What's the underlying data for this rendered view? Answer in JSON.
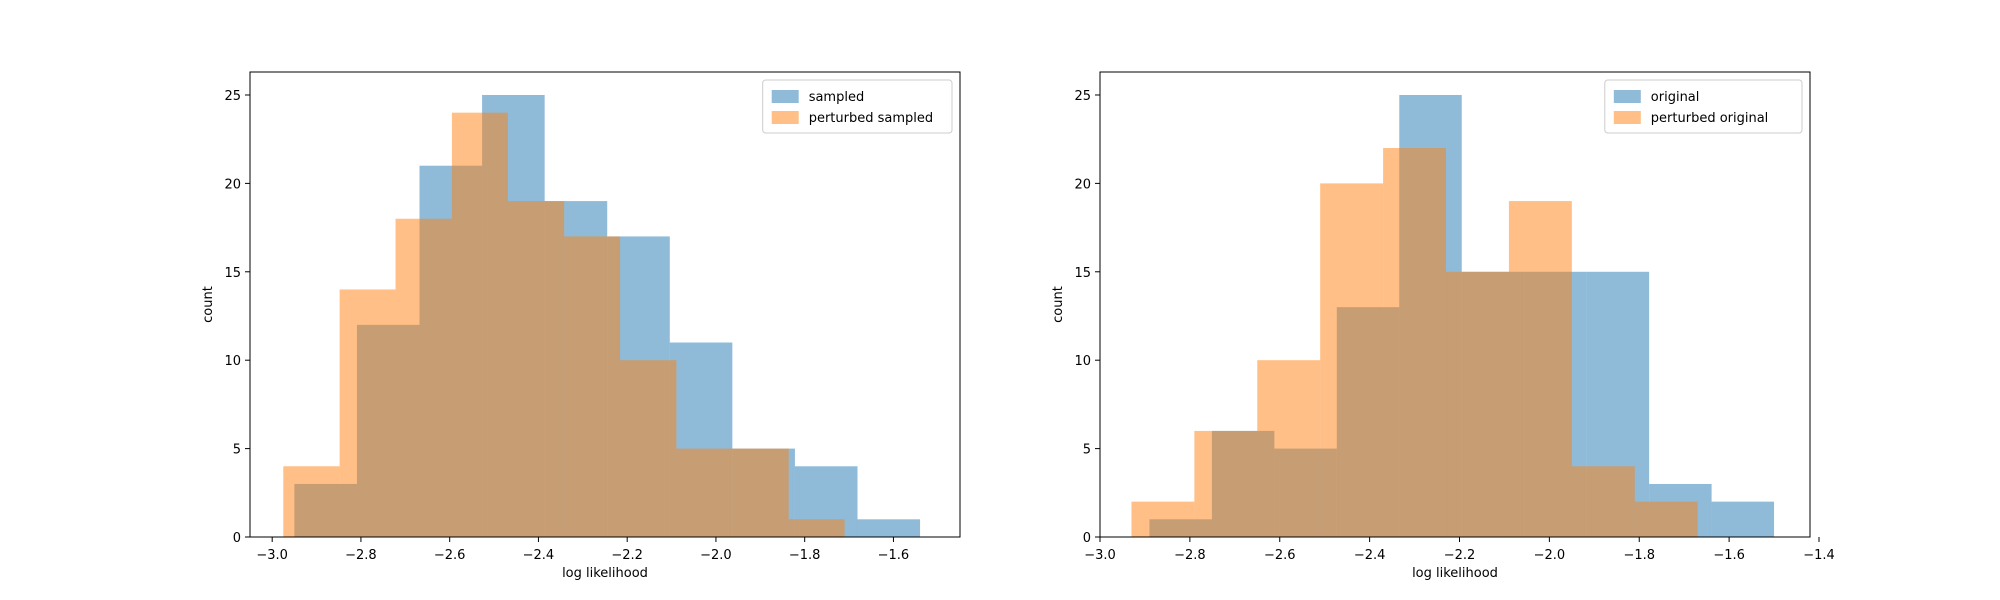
{
  "colors": {
    "series0": "#1f77b4",
    "series1": "#ff7f0e",
    "bar_alpha": 0.5
  },
  "chart_data": [
    {
      "type": "histogram",
      "xlabel": "log likelihood",
      "ylabel": "count",
      "xlim": [
        -3.05,
        -1.45
      ],
      "ylim": [
        0,
        26.3
      ],
      "xticks": [
        -3.0,
        -2.8,
        -2.6,
        -2.4,
        -2.2,
        -2.0,
        -1.8,
        -1.6
      ],
      "xtick_labels": [
        "−3.0",
        "−2.8",
        "−2.6",
        "−2.4",
        "−2.2",
        "−2.0",
        "−1.8",
        "−1.6"
      ],
      "yticks": [
        0,
        5,
        10,
        15,
        20,
        25
      ],
      "ytick_labels": [
        "0",
        "5",
        "10",
        "15",
        "20",
        "25"
      ],
      "grid": false,
      "legend_position": "top-right",
      "series": [
        {
          "name": "sampled",
          "bin_edges": [
            -2.95,
            -2.809,
            -2.668,
            -2.527,
            -2.386,
            -2.245,
            -2.104,
            -1.963,
            -1.822,
            -1.681,
            -1.54
          ],
          "counts": [
            3,
            12,
            21,
            25,
            19,
            17,
            11,
            5,
            4,
            1
          ]
        },
        {
          "name": "perturbed sampled",
          "bin_edges": [
            -2.975,
            -2.848,
            -2.722,
            -2.595,
            -2.469,
            -2.342,
            -2.216,
            -2.089,
            -1.963,
            -1.836,
            -1.71
          ],
          "counts": [
            4,
            14,
            18,
            24,
            19,
            17,
            10,
            5,
            5,
            1
          ]
        }
      ]
    },
    {
      "type": "histogram",
      "xlabel": "log likelihood",
      "ylabel": "count",
      "xlim": [
        -3.0,
        -1.42
      ],
      "ylim": [
        0,
        26.3
      ],
      "xticks": [
        -3.0,
        -2.8,
        -2.6,
        -2.4,
        -2.2,
        -2.0,
        -1.8,
        -1.6,
        -1.4
      ],
      "xtick_labels": [
        "−3.0",
        "−2.8",
        "−2.6",
        "−2.4",
        "−2.2",
        "−2.0",
        "−1.8",
        "−1.6",
        "−1.4"
      ],
      "yticks": [
        0,
        5,
        10,
        15,
        20,
        25
      ],
      "ytick_labels": [
        "0",
        "5",
        "10",
        "15",
        "20",
        "25"
      ],
      "grid": false,
      "legend_position": "top-right",
      "series": [
        {
          "name": "original",
          "bin_edges": [
            -2.89,
            -2.751,
            -2.612,
            -2.473,
            -2.334,
            -2.195,
            -2.056,
            -1.917,
            -1.778,
            -1.639,
            -1.5
          ],
          "counts": [
            1,
            6,
            5,
            13,
            25,
            15,
            15,
            15,
            3,
            2
          ]
        },
        {
          "name": "perturbed original",
          "bin_edges": [
            -2.93,
            -2.79,
            -2.65,
            -2.51,
            -2.37,
            -2.23,
            -2.09,
            -1.95,
            -1.81,
            -1.67,
            -1.53
          ],
          "counts": [
            2,
            6,
            10,
            20,
            22,
            15,
            19,
            4,
            2,
            0
          ]
        }
      ]
    }
  ]
}
